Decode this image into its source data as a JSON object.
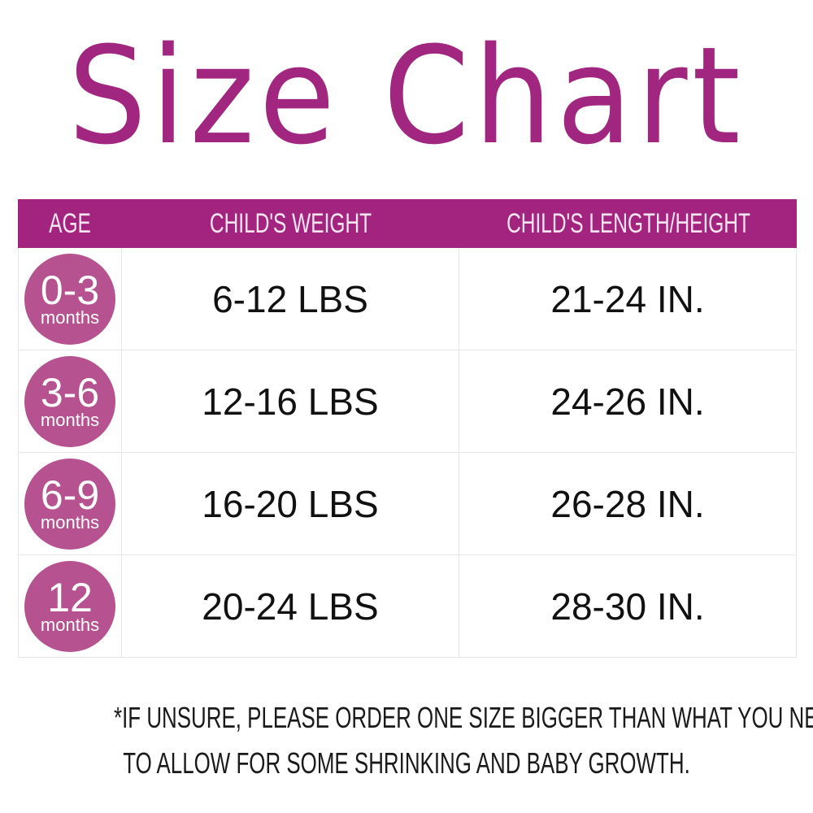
{
  "title": "Size Chart",
  "colors": {
    "accent": "#a3247f",
    "badge": "#b5528f",
    "title": "#a0267f"
  },
  "table": {
    "headers": [
      "AGE",
      "CHILD'S WEIGHT",
      "CHILD'S LENGTH/HEIGHT"
    ],
    "rows": [
      {
        "age": "0-3",
        "unit": "months",
        "weight": "6-12 LBS",
        "length": "21-24 IN."
      },
      {
        "age": "3-6",
        "unit": "months",
        "weight": "12-16 LBS",
        "length": "24-26 IN."
      },
      {
        "age": "6-9",
        "unit": "months",
        "weight": "16-20 LBS",
        "length": "26-28 IN."
      },
      {
        "age": "12",
        "unit": "months",
        "weight": "20-24 LBS",
        "length": "28-30 IN."
      }
    ]
  },
  "note": {
    "line1": "*IF UNSURE, PLEASE ORDER ONE SIZE BIGGER THAN WHAT YOU NEED",
    "line2": "TO ALLOW FOR SOME SHRINKING AND BABY GROWTH."
  }
}
